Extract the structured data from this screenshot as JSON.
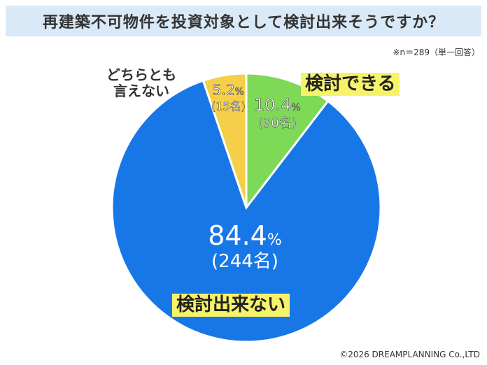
{
  "title": "再建築不可物件を投資対象として検討出来そうですか？",
  "note": "※n＝289（単一回答）",
  "copyright": "©2026 DREAMPLANNING Co.,LTD",
  "colors": {
    "title_bg": "#d9e9f7",
    "blue": "#1877e6",
    "green": "#7ed957",
    "yellow": "#f6cf48",
    "highlight": "#f6f26a"
  },
  "chart_data": {
    "type": "pie",
    "n": 289,
    "slices": [
      {
        "label": "検討できる",
        "percent": 10.4,
        "percent_text": "10.4",
        "count_text": "(30名)",
        "count": 30,
        "color": "#7ed957"
      },
      {
        "label": "検討出来ない",
        "percent": 84.4,
        "percent_text": "84.4",
        "count_text": "(244名)",
        "count": 244,
        "color": "#1877e6"
      },
      {
        "label": "どちらとも\n言えない",
        "percent": 5.2,
        "percent_text": "5.2",
        "count_text": "(15名)",
        "count": 15,
        "color": "#f6cf48"
      }
    ],
    "percent_unit": "%"
  }
}
